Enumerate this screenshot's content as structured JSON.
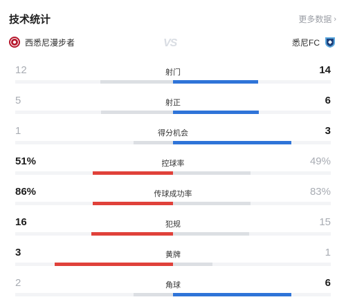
{
  "header": {
    "title": "技术统计",
    "more_label": "更多数据",
    "more_icon": "chevron-right-icon"
  },
  "teams": {
    "home": {
      "name": "西悉尼漫步者",
      "crest_color": "#b5162b"
    },
    "away": {
      "name": "悉尼FC",
      "crest_color": "#5aa6dc"
    },
    "vs": "VS"
  },
  "colors": {
    "home": "#e0413a",
    "away": "#2f74d8",
    "neutral": "#dcdfe3"
  },
  "stats": [
    {
      "label": "射门",
      "home": "12",
      "away": "14",
      "home_v": 12,
      "away_v": 14
    },
    {
      "label": "射正",
      "home": "5",
      "away": "6",
      "home_v": 5,
      "away_v": 6
    },
    {
      "label": "得分机会",
      "home": "1",
      "away": "3",
      "home_v": 1,
      "away_v": 3
    },
    {
      "label": "控球率",
      "home": "51%",
      "away": "49%",
      "home_v": 51,
      "away_v": 49
    },
    {
      "label": "传球成功率",
      "home": "86%",
      "away": "83%",
      "home_v": 86,
      "away_v": 83
    },
    {
      "label": "犯规",
      "home": "16",
      "away": "15",
      "home_v": 16,
      "away_v": 15
    },
    {
      "label": "黄牌",
      "home": "3",
      "away": "1",
      "home_v": 3,
      "away_v": 1
    },
    {
      "label": "角球",
      "home": "2",
      "away": "6",
      "home_v": 2,
      "away_v": 6
    }
  ]
}
